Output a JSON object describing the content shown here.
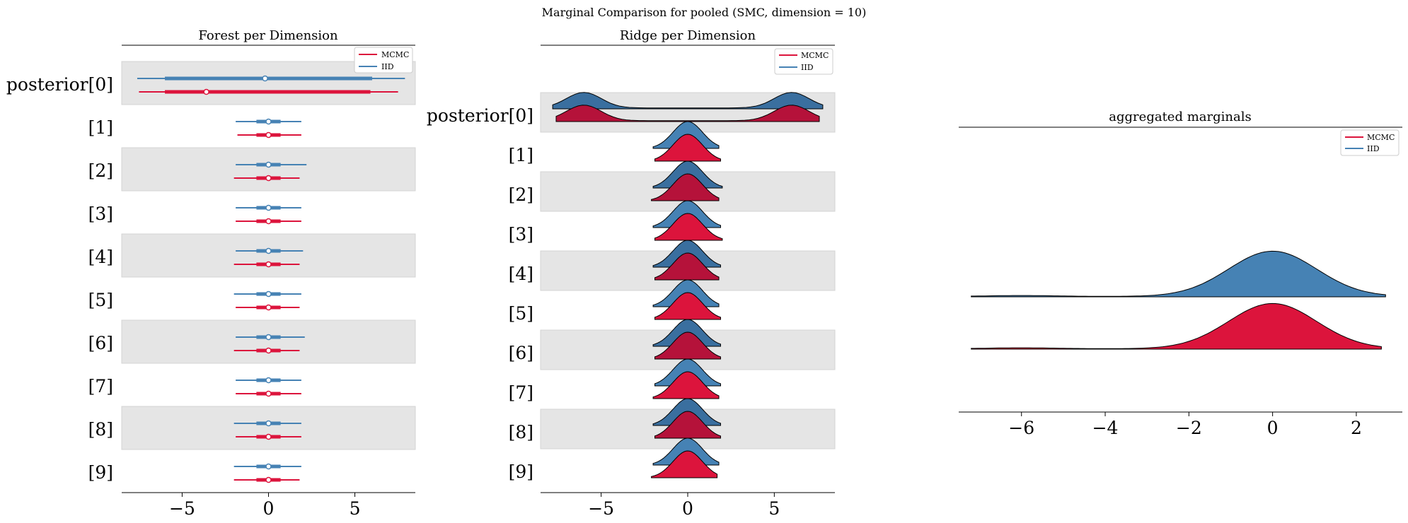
{
  "figure": {
    "suptitle": "Marginal Comparison for pooled (SMC, dimension = 10)"
  },
  "colors": {
    "mcmc": "#dc143c",
    "iid": "#4682b4",
    "band": "#e5e5e5"
  },
  "legend": {
    "labels": [
      "MCMC",
      "IID"
    ]
  },
  "chart_data": [
    {
      "type": "forest",
      "title": "Forest per Dimension",
      "xlim": [
        -8.5,
        8.5
      ],
      "xticks": [
        -5,
        0,
        5
      ],
      "xtick_labels": [
        "−5",
        "0",
        "5"
      ],
      "legend_position": "top-right",
      "categories": [
        "posterior[0]",
        "[1]",
        "[2]",
        "[3]",
        "[4]",
        "[5]",
        "[6]",
        "[7]",
        "[8]",
        "[9]"
      ],
      "series": [
        {
          "name": "IID",
          "hdi_thin": [
            [
              -7.6,
              7.9
            ],
            [
              -1.9,
              1.9
            ],
            [
              -1.9,
              2.2
            ],
            [
              -1.9,
              1.9
            ],
            [
              -1.9,
              2.0
            ],
            [
              -2.0,
              1.9
            ],
            [
              -1.9,
              2.1
            ],
            [
              -1.9,
              1.9
            ],
            [
              -2.0,
              1.9
            ],
            [
              -2.0,
              1.9
            ]
          ],
          "hdi_thick": [
            [
              -6.0,
              6.0
            ],
            [
              -0.7,
              0.7
            ],
            [
              -0.7,
              0.7
            ],
            [
              -0.7,
              0.7
            ],
            [
              -0.7,
              0.7
            ],
            [
              -0.7,
              0.7
            ],
            [
              -0.7,
              0.7
            ],
            [
              -0.7,
              0.7
            ],
            [
              -0.7,
              0.7
            ],
            [
              -0.7,
              0.7
            ]
          ],
          "point": [
            -0.2,
            0.0,
            0.0,
            0.0,
            0.0,
            0.0,
            0.0,
            0.0,
            0.0,
            0.0
          ]
        },
        {
          "name": "MCMC",
          "hdi_thin": [
            [
              -7.5,
              7.5
            ],
            [
              -1.8,
              1.9
            ],
            [
              -2.0,
              1.8
            ],
            [
              -1.9,
              1.9
            ],
            [
              -2.0,
              1.8
            ],
            [
              -1.9,
              1.8
            ],
            [
              -2.0,
              1.8
            ],
            [
              -1.9,
              1.9
            ],
            [
              -1.9,
              1.9
            ],
            [
              -2.0,
              1.8
            ]
          ],
          "hdi_thick": [
            [
              -6.0,
              5.9
            ],
            [
              -0.7,
              0.7
            ],
            [
              -0.7,
              0.7
            ],
            [
              -0.7,
              0.7
            ],
            [
              -0.7,
              0.7
            ],
            [
              -0.7,
              0.7
            ],
            [
              -0.7,
              0.7
            ],
            [
              -0.7,
              0.7
            ],
            [
              -0.7,
              0.7
            ],
            [
              -0.7,
              0.7
            ]
          ],
          "point": [
            -3.6,
            0.0,
            0.0,
            0.0,
            0.0,
            0.0,
            0.0,
            0.0,
            0.0,
            0.0
          ]
        }
      ]
    },
    {
      "type": "ridge",
      "title": "Ridge per Dimension",
      "xlim": [
        -8.5,
        8.5
      ],
      "xticks": [
        -5,
        0,
        5
      ],
      "xtick_labels": [
        "−5",
        "0",
        "5"
      ],
      "legend_position": "top-right",
      "categories": [
        "posterior[0]",
        "[1]",
        "[2]",
        "[3]",
        "[4]",
        "[5]",
        "[6]",
        "[7]",
        "[8]",
        "[9]"
      ],
      "series": [
        {
          "name": "IID",
          "ranges": [
            [
              -7.8,
              7.8
            ],
            [
              -2.0,
              1.8
            ],
            [
              -2.0,
              2.0
            ],
            [
              -2.0,
              1.9
            ],
            [
              -2.0,
              1.9
            ],
            [
              -2.0,
              1.8
            ],
            [
              -2.0,
              1.9
            ],
            [
              -1.9,
              1.9
            ],
            [
              -2.0,
              1.9
            ],
            [
              -2.0,
              1.8
            ]
          ]
        },
        {
          "name": "MCMC",
          "ranges": [
            [
              -7.6,
              7.6
            ],
            [
              -1.9,
              1.9
            ],
            [
              -2.1,
              1.8
            ],
            [
              -1.9,
              2.0
            ],
            [
              -1.9,
              1.8
            ],
            [
              -1.9,
              1.9
            ],
            [
              -1.9,
              1.9
            ],
            [
              -2.0,
              1.8
            ],
            [
              -1.9,
              1.9
            ],
            [
              -2.1,
              1.7
            ]
          ]
        }
      ]
    },
    {
      "type": "ridge",
      "title": "aggregated marginals",
      "xlim": [
        -7.5,
        3.1
      ],
      "xticks": [
        -6,
        -4,
        -2,
        0,
        2
      ],
      "xtick_labels": [
        "−6",
        "−4",
        "−2",
        "0",
        "2"
      ],
      "legend_position": "top-right",
      "series": [
        {
          "name": "IID",
          "range": [
            -7.2,
            2.7
          ]
        },
        {
          "name": "MCMC",
          "range": [
            -7.2,
            2.6
          ]
        }
      ]
    }
  ]
}
